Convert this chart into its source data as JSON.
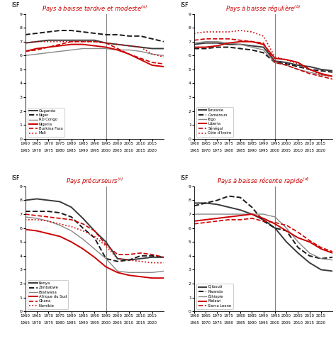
{
  "title_color": "#cc0000",
  "vline_color": "#808080",
  "vline_year": 1995,
  "ylim": [
    0,
    9
  ],
  "yticks": [
    0,
    1,
    2,
    3,
    4,
    5,
    6,
    7,
    8,
    9
  ],
  "xlim": [
    1960,
    2020
  ],
  "xtick_vals": [
    1960,
    1965,
    1970,
    1975,
    1980,
    1985,
    1990,
    1995,
    2000,
    2005,
    2010,
    2015
  ],
  "xtick_labels_r1": [
    "1960",
    "1965",
    "1970",
    "1975",
    "1980",
    "1985",
    "1990",
    "1995",
    "2000",
    "2005",
    "2010",
    "2015"
  ],
  "xtick_labels_r2": [
    "1965",
    "1970",
    "1975",
    "1980",
    "1985",
    "1990",
    "1995",
    "2000",
    "2005",
    "2010",
    "2015",
    "2020"
  ],
  "years": [
    1960,
    1965,
    1970,
    1975,
    1980,
    1985,
    1990,
    1995,
    2000,
    2005,
    2010,
    2015,
    2020
  ],
  "panel_A": {
    "title": "Pays à baisse tardive et modeste",
    "superscript": "a",
    "series": [
      {
        "label": "Ouganda",
        "color": "#3a3a3a",
        "ls": "-",
        "lw": 1.4,
        "y": [
          6.9,
          7.0,
          7.1,
          7.1,
          7.1,
          7.1,
          7.1,
          6.9,
          6.8,
          6.7,
          6.6,
          6.5,
          6.5
        ]
      },
      {
        "label": "Niger",
        "color": "#1a1a1a",
        "ls": "--",
        "lw": 1.4,
        "y": [
          7.5,
          7.6,
          7.7,
          7.8,
          7.8,
          7.7,
          7.6,
          7.5,
          7.5,
          7.4,
          7.4,
          7.2,
          7.0
        ]
      },
      {
        "label": "RD Congo",
        "color": "#888888",
        "ls": "-",
        "lw": 1.0,
        "y": [
          6.0,
          6.1,
          6.2,
          6.3,
          6.4,
          6.5,
          6.5,
          6.5,
          6.4,
          6.4,
          6.3,
          6.1,
          6.0
        ]
      },
      {
        "label": "Nigeria",
        "color": "#cc0000",
        "ls": "-",
        "lw": 1.4,
        "y": [
          6.3,
          6.5,
          6.6,
          6.7,
          6.8,
          6.8,
          6.7,
          6.6,
          6.4,
          6.1,
          5.7,
          5.3,
          5.2
        ]
      },
      {
        "label": "Burkina Faso",
        "color": "#cc0000",
        "ls": "--",
        "lw": 1.2,
        "y": [
          6.3,
          6.4,
          6.6,
          6.8,
          7.0,
          7.0,
          7.0,
          6.9,
          6.5,
          6.1,
          5.8,
          5.5,
          5.4
        ]
      },
      {
        "label": "Mali",
        "color": "#cc0000",
        "ls": ":",
        "lw": 1.2,
        "y": [
          6.9,
          7.0,
          7.0,
          7.0,
          7.0,
          7.0,
          7.0,
          6.9,
          6.8,
          6.7,
          6.6,
          6.1,
          5.9
        ]
      }
    ]
  },
  "panel_B": {
    "title": "Pays à baisse régulière",
    "superscript": "b",
    "series": [
      {
        "label": "Tanzanie",
        "color": "#3a3a3a",
        "ls": "-",
        "lw": 1.4,
        "y": [
          6.8,
          6.9,
          6.9,
          6.8,
          6.8,
          6.7,
          6.6,
          5.6,
          5.5,
          5.3,
          5.2,
          5.0,
          4.9
        ]
      },
      {
        "label": "Cameroun",
        "color": "#1a1a1a",
        "ls": "--",
        "lw": 1.4,
        "y": [
          6.5,
          6.5,
          6.6,
          6.6,
          6.5,
          6.4,
          6.2,
          5.5,
          5.4,
          5.2,
          5.0,
          4.9,
          4.8
        ]
      },
      {
        "label": "Togo",
        "color": "#888888",
        "ls": "-",
        "lw": 1.0,
        "y": [
          6.9,
          7.0,
          7.0,
          6.9,
          6.8,
          6.6,
          6.4,
          5.5,
          5.3,
          5.0,
          4.8,
          4.6,
          4.5
        ]
      },
      {
        "label": "Liberia",
        "color": "#cc0000",
        "ls": "-",
        "lw": 1.4,
        "y": [
          6.6,
          6.6,
          6.7,
          6.9,
          7.0,
          7.0,
          6.8,
          5.8,
          5.7,
          5.5,
          5.0,
          4.7,
          4.5
        ]
      },
      {
        "label": "Sénégal",
        "color": "#cc0000",
        "ls": "--",
        "lw": 1.2,
        "y": [
          7.1,
          7.2,
          7.2,
          7.2,
          7.1,
          7.0,
          6.9,
          5.5,
          5.3,
          5.0,
          4.7,
          4.5,
          4.3
        ]
      },
      {
        "label": "Côte d'Ivoire",
        "color": "#cc0000",
        "ls": ":",
        "lw": 1.2,
        "y": [
          7.6,
          7.7,
          7.7,
          7.7,
          7.8,
          7.7,
          7.4,
          5.9,
          5.7,
          5.4,
          5.0,
          4.6,
          4.5
        ]
      }
    ]
  },
  "panel_C": {
    "title": "Pays précurseurs",
    "superscript": "c",
    "series": [
      {
        "label": "Kenya",
        "color": "#3a3a3a",
        "ls": "-",
        "lw": 1.4,
        "y": [
          8.0,
          8.1,
          8.0,
          7.9,
          7.5,
          6.7,
          5.8,
          5.0,
          3.8,
          3.7,
          3.8,
          3.9,
          3.9
        ]
      },
      {
        "label": "Zimbabwe",
        "color": "#1a1a1a",
        "ls": "--",
        "lw": 1.4,
        "y": [
          7.2,
          7.2,
          7.2,
          7.1,
          6.8,
          6.0,
          5.3,
          3.8,
          3.6,
          3.7,
          4.0,
          4.0,
          3.9
        ]
      },
      {
        "label": "Bostwana",
        "color": "#888888",
        "ls": "-",
        "lw": 1.0,
        "y": [
          6.8,
          6.7,
          6.5,
          6.2,
          5.8,
          5.2,
          4.5,
          3.8,
          2.9,
          2.8,
          2.8,
          2.8,
          2.9
        ]
      },
      {
        "label": "Afrique du Sud",
        "color": "#cc0000",
        "ls": "-",
        "lw": 1.4,
        "y": [
          5.9,
          5.8,
          5.6,
          5.4,
          5.0,
          4.5,
          3.9,
          3.2,
          2.8,
          2.6,
          2.5,
          2.4,
          2.4
        ]
      },
      {
        "label": "Ghana",
        "color": "#cc0000",
        "ls": "--",
        "lw": 1.2,
        "y": [
          7.0,
          6.9,
          6.8,
          6.7,
          6.6,
          6.3,
          5.8,
          4.8,
          4.1,
          4.1,
          4.2,
          4.1,
          3.9
        ]
      },
      {
        "label": "Namibie",
        "color": "#cc0000",
        "ls": ":",
        "lw": 1.2,
        "y": [
          6.6,
          6.6,
          6.5,
          6.3,
          6.1,
          5.8,
          5.4,
          4.7,
          3.8,
          3.7,
          3.6,
          3.5,
          3.5
        ]
      }
    ]
  },
  "panel_D": {
    "title": "Pays à baisse récente rapide",
    "superscript": "d",
    "series": [
      {
        "label": "Djibouti",
        "color": "#3a3a3a",
        "ls": "-",
        "lw": 1.4,
        "y": [
          7.8,
          7.8,
          7.7,
          7.5,
          7.3,
          7.0,
          6.6,
          6.0,
          5.0,
          4.2,
          3.5,
          3.0,
          2.9
        ]
      },
      {
        "label": "Rwanda",
        "color": "#1a1a1a",
        "ls": "--",
        "lw": 1.4,
        "y": [
          7.6,
          7.8,
          8.0,
          8.3,
          8.2,
          7.5,
          6.5,
          6.0,
          5.8,
          4.6,
          4.0,
          3.8,
          3.9
        ]
      },
      {
        "label": "Éthiopie",
        "color": "#888888",
        "ls": "-",
        "lw": 1.0,
        "y": [
          7.0,
          7.0,
          7.0,
          7.0,
          7.0,
          7.0,
          7.0,
          6.8,
          6.0,
          5.0,
          4.2,
          3.8,
          3.7
        ]
      },
      {
        "label": "Malawi",
        "color": "#cc0000",
        "ls": "-",
        "lw": 1.4,
        "y": [
          6.5,
          6.6,
          6.7,
          6.8,
          6.9,
          7.0,
          6.7,
          6.3,
          5.8,
          5.3,
          5.0,
          4.5,
          4.2
        ]
      },
      {
        "label": "Sierra Leone",
        "color": "#cc0000",
        "ls": "--",
        "lw": 1.2,
        "y": [
          6.3,
          6.4,
          6.5,
          6.6,
          6.6,
          6.7,
          6.5,
          6.4,
          6.2,
          5.7,
          5.1,
          4.6,
          4.3
        ]
      }
    ]
  }
}
